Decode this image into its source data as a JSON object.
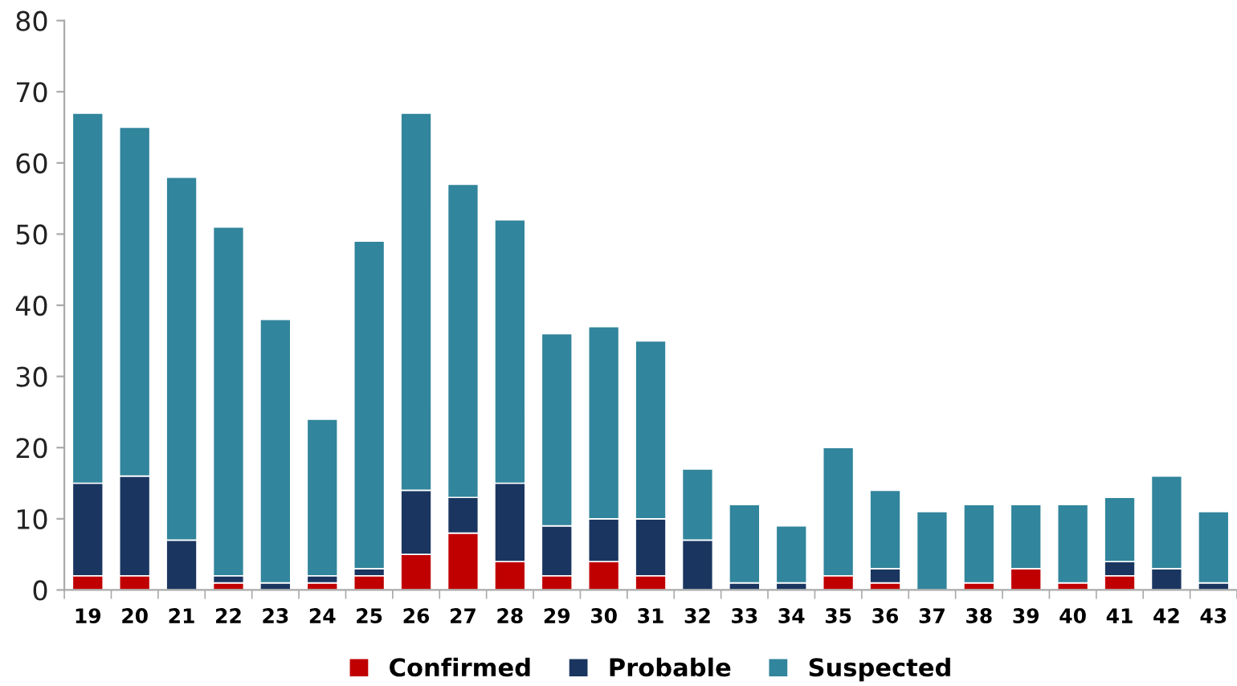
{
  "chart_data": {
    "type": "bar",
    "stacked": true,
    "categories": [
      "19",
      "20",
      "21",
      "22",
      "23",
      "24",
      "25",
      "26",
      "27",
      "28",
      "29",
      "30",
      "31",
      "32",
      "33",
      "34",
      "35",
      "36",
      "37",
      "38",
      "39",
      "40",
      "41",
      "42",
      "43"
    ],
    "series": [
      {
        "name": "Confirmed",
        "color": "#c00000",
        "values": [
          2,
          2,
          0,
          1,
          0,
          1,
          2,
          5,
          8,
          4,
          2,
          4,
          2,
          0,
          0,
          0,
          2,
          1,
          0,
          1,
          3,
          1,
          2,
          0,
          0
        ]
      },
      {
        "name": "Probable",
        "color": "#1a3660",
        "values": [
          13,
          14,
          7,
          1,
          1,
          1,
          1,
          9,
          5,
          11,
          7,
          6,
          8,
          7,
          1,
          1,
          0,
          2,
          0,
          0,
          0,
          0,
          2,
          3,
          1
        ]
      },
      {
        "name": "Suspected",
        "color": "#31859c",
        "values": [
          52,
          49,
          51,
          49,
          37,
          22,
          46,
          53,
          44,
          37,
          27,
          27,
          25,
          10,
          11,
          8,
          18,
          11,
          11,
          11,
          9,
          11,
          9,
          13,
          10
        ]
      }
    ],
    "ylim": [
      0,
      80
    ],
    "yticks": [
      0,
      10,
      20,
      30,
      40,
      50,
      60,
      70,
      80
    ],
    "grid": false,
    "legend": "bottom"
  }
}
